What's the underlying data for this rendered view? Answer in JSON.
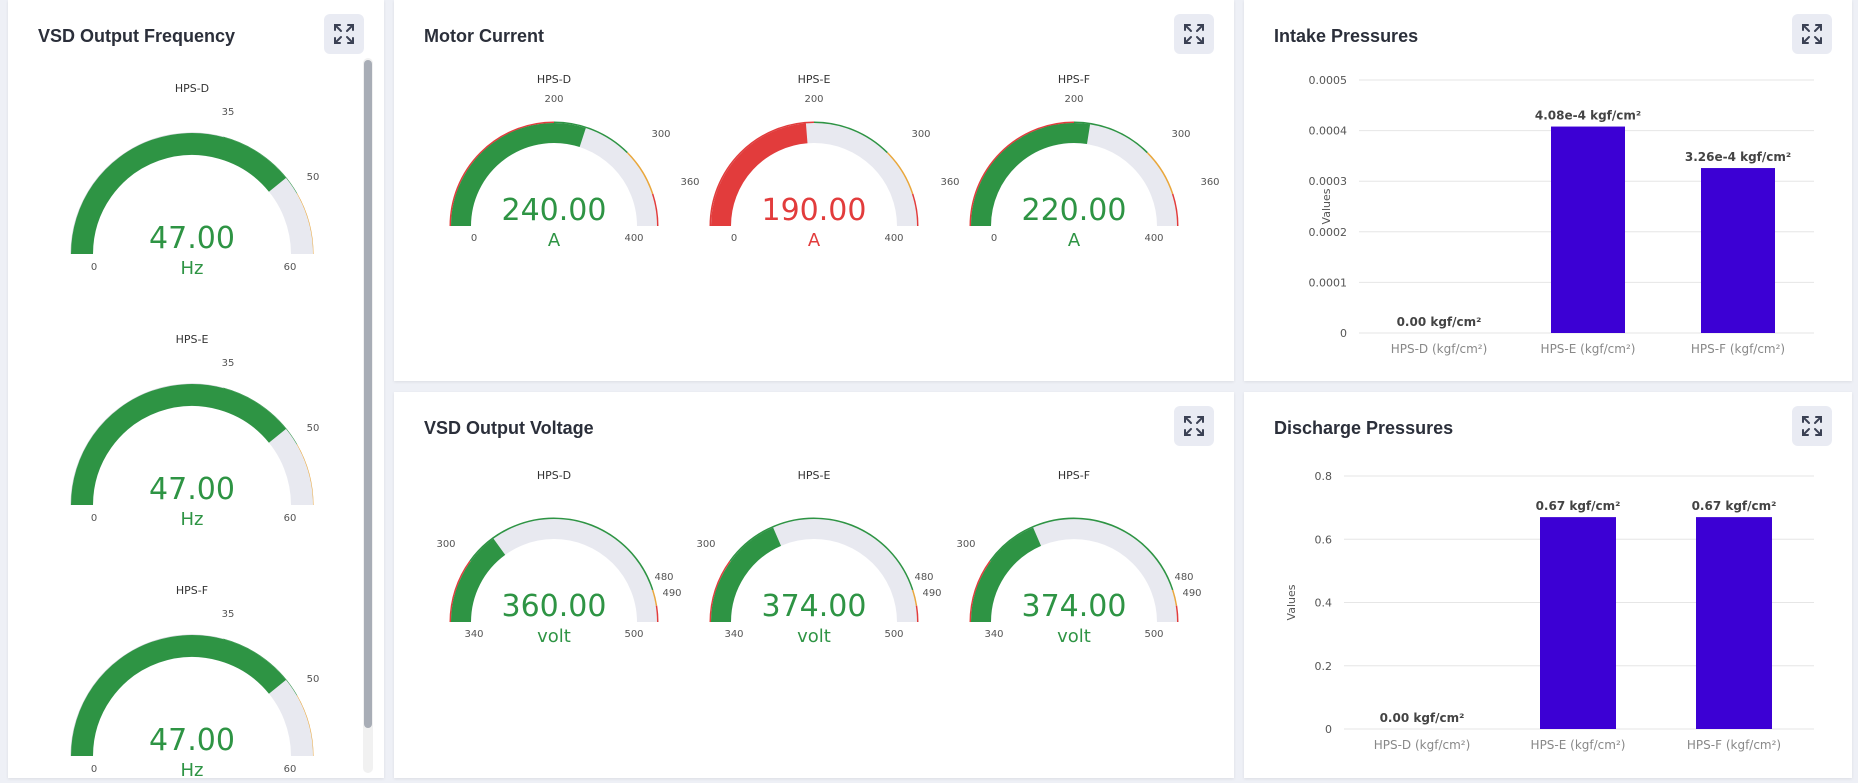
{
  "colors": {
    "green": "#2e9444",
    "red": "#e23c3c",
    "orange": "#e9a73c",
    "track": "#e8e9f0",
    "bar": "#3c00d4"
  },
  "vsd_freq": {
    "title": "VSD Output Frequency",
    "expand_icon": "expand-icon",
    "gauges": [
      {
        "name": "HPS-D",
        "value": 47.0,
        "display": "47.00",
        "unit": "Hz",
        "min": 0,
        "max": 60,
        "ticks": [
          "0",
          "35",
          "50",
          "60"
        ]
      },
      {
        "name": "HPS-E",
        "value": 47.0,
        "display": "47.00",
        "unit": "Hz",
        "min": 0,
        "max": 60,
        "ticks": [
          "0",
          "35",
          "50",
          "60"
        ]
      },
      {
        "name": "HPS-F",
        "value": 47.0,
        "display": "47.00",
        "unit": "Hz",
        "min": 0,
        "max": 60,
        "ticks": [
          "0",
          "35",
          "50",
          "60"
        ]
      }
    ]
  },
  "motor_current": {
    "title": "Motor Current",
    "gauges": [
      {
        "name": "HPS-D",
        "value": 240,
        "display": "240.00",
        "unit": "A",
        "min": 0,
        "max": 400,
        "ticks": [
          "0",
          "200",
          "300",
          "360",
          "400"
        ],
        "status": "ok"
      },
      {
        "name": "HPS-E",
        "value": 190,
        "display": "190.00",
        "unit": "A",
        "min": 0,
        "max": 400,
        "ticks": [
          "0",
          "200",
          "300",
          "360",
          "400"
        ],
        "status": "alarm"
      },
      {
        "name": "HPS-F",
        "value": 220,
        "display": "220.00",
        "unit": "A",
        "min": 0,
        "max": 400,
        "ticks": [
          "0",
          "200",
          "300",
          "360",
          "400"
        ],
        "status": "ok"
      }
    ]
  },
  "vsd_voltage": {
    "title": "VSD Output Voltage",
    "gauges": [
      {
        "name": "HPS-D",
        "value": 360,
        "display": "360.00",
        "unit": "volt",
        "min": 300,
        "max": 500,
        "ticks": [
          "300",
          "340",
          "480",
          "490",
          "500"
        ]
      },
      {
        "name": "HPS-E",
        "value": 374,
        "display": "374.00",
        "unit": "volt",
        "min": 300,
        "max": 500,
        "ticks": [
          "300",
          "340",
          "480",
          "490",
          "500"
        ]
      },
      {
        "name": "HPS-F",
        "value": 374,
        "display": "374.00",
        "unit": "volt",
        "min": 300,
        "max": 500,
        "ticks": [
          "300",
          "340",
          "480",
          "490",
          "500"
        ]
      }
    ]
  },
  "intake": {
    "title": "Intake Pressures",
    "chart_data": {
      "type": "bar",
      "categories": [
        "HPS-D (kgf/cm²)",
        "HPS-E (kgf/cm²)",
        "HPS-F (kgf/cm²)"
      ],
      "values": [
        0,
        0.000408,
        0.000326
      ],
      "data_labels": [
        "0.00 kgf/cm²",
        "4.08e-4 kgf/cm²",
        "3.26e-4 kgf/cm²"
      ],
      "ylabel": "Values",
      "yticks": [
        "0",
        "0.0001",
        "0.0002",
        "0.0003",
        "0.0004",
        "0.0005"
      ],
      "ylim": [
        0,
        0.0005
      ],
      "grid": true
    }
  },
  "discharge": {
    "title": "Discharge Pressures",
    "chart_data": {
      "type": "bar",
      "categories": [
        "HPS-D (kgf/cm²)",
        "HPS-E (kgf/cm²)",
        "HPS-F (kgf/cm²)"
      ],
      "values": [
        0,
        0.67,
        0.67
      ],
      "data_labels": [
        "0.00 kgf/cm²",
        "0.67 kgf/cm²",
        "0.67 kgf/cm²"
      ],
      "ylabel": "Values",
      "yticks": [
        "0",
        "0.2",
        "0.4",
        "0.6",
        "0.8"
      ],
      "ylim": [
        0,
        0.8
      ],
      "grid": true
    }
  }
}
